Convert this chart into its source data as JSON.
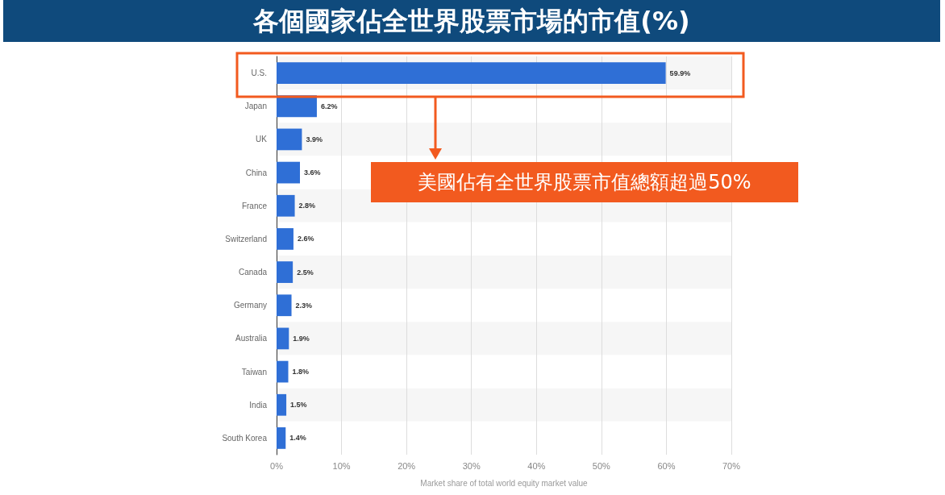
{
  "chart_data": {
    "type": "bar",
    "orientation": "horizontal",
    "title": "各個國家佔全世界股票市場的市值(%)",
    "xlabel": "Market share of total world equity market value",
    "categories": [
      "U.S.",
      "Japan",
      "UK",
      "China",
      "France",
      "Switzerland",
      "Canada",
      "Germany",
      "Australia",
      "Taiwan",
      "India",
      "South Korea"
    ],
    "values": [
      59.9,
      6.2,
      3.9,
      3.6,
      2.8,
      2.6,
      2.5,
      2.3,
      1.9,
      1.8,
      1.5,
      1.4
    ],
    "value_labels": [
      "59.9%",
      "6.2%",
      "3.9%",
      "3.6%",
      "2.8%",
      "2.6%",
      "2.5%",
      "2.3%",
      "1.9%",
      "1.8%",
      "1.5%",
      "1.4%"
    ],
    "color": "#2f6fd6",
    "xlim": [
      0,
      70
    ],
    "xticks": [
      {
        "value": 0,
        "label": "0%"
      },
      {
        "value": 10,
        "label": "10%"
      },
      {
        "value": 20,
        "label": "20%"
      },
      {
        "value": 30,
        "label": "30%"
      },
      {
        "value": 40,
        "label": "40%"
      },
      {
        "value": 50,
        "label": "50%"
      },
      {
        "value": 60,
        "label": "60%"
      },
      {
        "value": 70,
        "label": "70%"
      }
    ],
    "grid": "x",
    "annotations": [
      "美國佔有全世界股票市值總額超過50%"
    ]
  }
}
